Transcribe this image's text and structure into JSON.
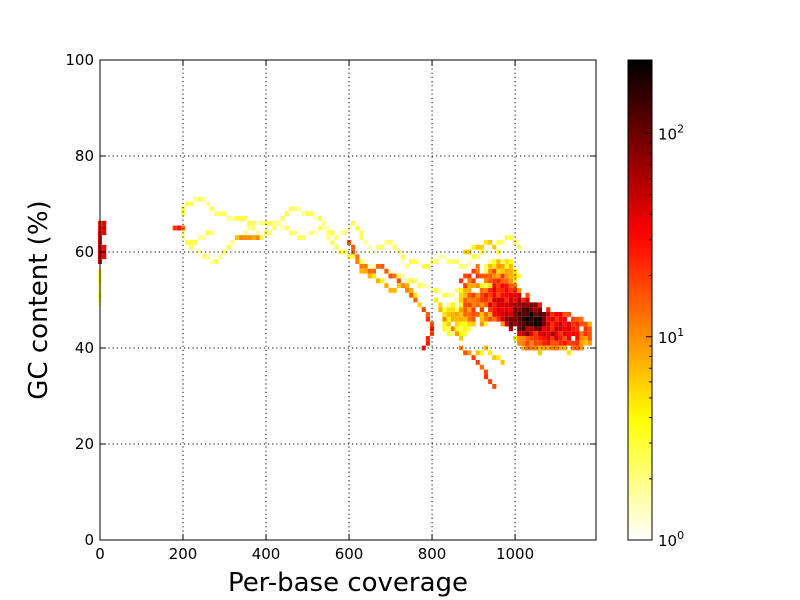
{
  "chart_data": {
    "type": "heatmap",
    "title": "",
    "xlabel": "Per-base coverage",
    "ylabel": "GC content (%)",
    "xlim": [
      0,
      1195
    ],
    "ylim": [
      0,
      100
    ],
    "x_ticks": [
      0,
      200,
      400,
      600,
      800,
      1000
    ],
    "x_tick_labels": [
      "0",
      "200",
      "400",
      "600",
      "800",
      "1000"
    ],
    "y_ticks": [
      0,
      20,
      40,
      60,
      80,
      100
    ],
    "y_tick_labels": [
      "0",
      "20",
      "40",
      "60",
      "80",
      "100"
    ],
    "grid": true,
    "colormap": "hot_r",
    "color_scale": "log",
    "colorbar": {
      "min": 1,
      "max": 230,
      "ticks": [
        1,
        10,
        100
      ],
      "tick_labels": [
        {
          "base": "10",
          "exp": "0"
        },
        {
          "base": "10",
          "exp": "1"
        },
        {
          "base": "10",
          "exp": "2"
        }
      ]
    },
    "bin_size": {
      "coverage": 10,
      "gc": 1
    },
    "segments": [
      {
        "path": [
          [
            0,
            66
          ],
          [
            0,
            58
          ]
        ],
        "count": 35,
        "width": 2
      },
      {
        "path": [
          [
            0,
            56
          ],
          [
            0,
            49
          ]
        ],
        "count": 2,
        "width": 1
      },
      {
        "path": [
          [
            190,
            65
          ],
          [
            215,
            61
          ],
          [
            250,
            59
          ],
          [
            280,
            58
          ],
          [
            300,
            60
          ],
          [
            320,
            62
          ],
          [
            350,
            64
          ],
          [
            370,
            65
          ],
          [
            390,
            63
          ],
          [
            420,
            65
          ],
          [
            450,
            68
          ],
          [
            470,
            69
          ],
          [
            500,
            68
          ],
          [
            530,
            67
          ],
          [
            550,
            65
          ],
          [
            570,
            63
          ],
          [
            590,
            64
          ],
          [
            610,
            66
          ],
          [
            625,
            64
          ],
          [
            640,
            62
          ],
          [
            660,
            60
          ],
          [
            680,
            61
          ],
          [
            700,
            62
          ],
          [
            720,
            60
          ],
          [
            740,
            57
          ],
          [
            760,
            58
          ],
          [
            790,
            57
          ],
          [
            820,
            59
          ],
          [
            850,
            58
          ],
          [
            880,
            57
          ],
          [
            900,
            59
          ],
          [
            930,
            60
          ]
        ],
        "count": 2,
        "width": 1
      },
      {
        "path": [
          [
            195,
            68
          ],
          [
            210,
            70
          ],
          [
            235,
            71
          ],
          [
            250,
            71
          ],
          [
            265,
            69
          ],
          [
            290,
            68
          ],
          [
            310,
            67
          ],
          [
            340,
            67
          ],
          [
            370,
            66
          ],
          [
            400,
            66
          ],
          [
            430,
            66
          ],
          [
            460,
            64
          ],
          [
            480,
            63
          ],
          [
            510,
            64
          ],
          [
            540,
            65
          ],
          [
            560,
            62
          ],
          [
            580,
            60
          ],
          [
            600,
            59
          ],
          [
            630,
            58
          ],
          [
            660,
            57
          ],
          [
            690,
            56
          ],
          [
            720,
            55
          ],
          [
            750,
            54
          ],
          [
            780,
            53
          ],
          [
            810,
            52
          ],
          [
            840,
            51
          ],
          [
            870,
            52
          ],
          [
            900,
            53
          ]
        ],
        "count": 2,
        "width": 1
      },
      {
        "path": [
          [
            180,
            65
          ],
          [
            200,
            65
          ]
        ],
        "count": 20,
        "width": 1
      },
      {
        "path": [
          [
            220,
            62
          ],
          [
            270,
            64
          ]
        ],
        "count": 3,
        "width": 1
      },
      {
        "path": [
          [
            330,
            63
          ],
          [
            380,
            63
          ]
        ],
        "count": 8,
        "width": 1
      },
      {
        "path": [
          [
            600,
            62
          ],
          [
            620,
            58
          ],
          [
            650,
            56
          ],
          [
            680,
            57
          ],
          [
            700,
            55
          ],
          [
            720,
            54
          ],
          [
            740,
            52
          ],
          [
            760,
            50
          ]
        ],
        "count": 12,
        "width": 1
      },
      {
        "path": [
          [
            630,
            56
          ],
          [
            660,
            55
          ],
          [
            700,
            52
          ],
          [
            740,
            53
          ],
          [
            770,
            49
          ]
        ],
        "count": 6,
        "width": 1
      },
      {
        "path": [
          [
            780,
            48
          ],
          [
            800,
            44
          ],
          [
            790,
            41
          ],
          [
            780,
            40
          ]
        ],
        "count": 20,
        "width": 1
      },
      {
        "path": [
          [
            810,
            50
          ],
          [
            830,
            46
          ],
          [
            850,
            44
          ],
          [
            870,
            42
          ]
        ],
        "count": 8,
        "width": 1
      },
      {
        "path": [
          [
            870,
            40
          ],
          [
            900,
            38
          ],
          [
            920,
            36
          ],
          [
            935,
            33
          ],
          [
            945,
            32
          ]
        ],
        "count": 15,
        "width": 1
      },
      {
        "path": [
          [
            900,
            38
          ],
          [
            930,
            40
          ],
          [
            950,
            38
          ],
          [
            970,
            37
          ]
        ],
        "count": 6,
        "width": 1
      },
      {
        "path": [
          [
            880,
            60
          ],
          [
            910,
            61
          ],
          [
            940,
            62
          ],
          [
            960,
            60
          ]
        ],
        "count": 5,
        "width": 1
      },
      {
        "path": [
          [
            960,
            62
          ],
          [
            990,
            63
          ],
          [
            1010,
            61
          ]
        ],
        "count": 2,
        "width": 1
      },
      {
        "path": [
          [
            870,
            54
          ],
          [
            900,
            56
          ],
          [
            930,
            55
          ],
          [
            960,
            54
          ]
        ],
        "count": 15,
        "width": 2
      }
    ],
    "blobs": [
      {
        "center": [
          960,
          50
        ],
        "radius": [
          55,
          5
        ],
        "count": 35
      },
      {
        "center": [
          1000,
          48
        ],
        "radius": [
          55,
          4
        ],
        "count": 60
      },
      {
        "center": [
          1030,
          46
        ],
        "radius": [
          60,
          4
        ],
        "count": 120
      },
      {
        "center": [
          1045,
          46
        ],
        "radius": [
          25,
          2
        ],
        "count": 230
      },
      {
        "center": [
          1090,
          44
        ],
        "radius": [
          55,
          4
        ],
        "count": 45
      },
      {
        "center": [
          1130,
          43
        ],
        "radius": [
          60,
          4
        ],
        "count": 25
      },
      {
        "center": [
          1060,
          42
        ],
        "radius": [
          60,
          3
        ],
        "count": 20
      },
      {
        "center": [
          905,
          49
        ],
        "radius": [
          45,
          5
        ],
        "count": 15
      },
      {
        "center": [
          860,
          46
        ],
        "radius": [
          40,
          4
        ],
        "count": 6
      },
      {
        "center": [
          960,
          55
        ],
        "radius": [
          45,
          4
        ],
        "count": 8
      }
    ]
  }
}
